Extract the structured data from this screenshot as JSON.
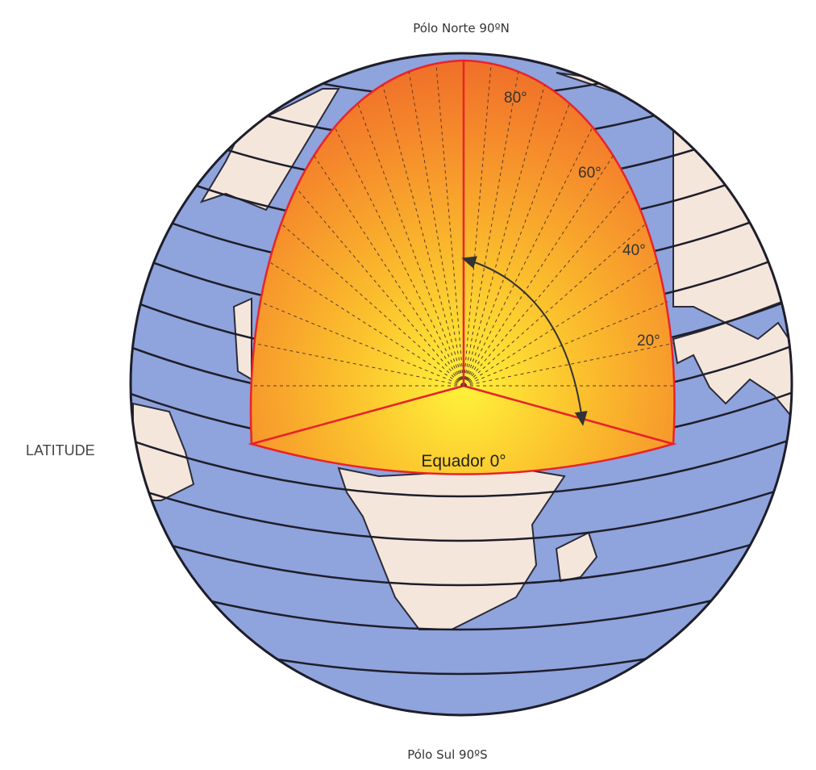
{
  "header": {
    "north": "Pólo Norte 90ºN",
    "south": "Pólo Sul 90ºS"
  },
  "side_label": "LATITUDE",
  "equator": "Equador 0°",
  "angles": [
    "80°",
    "60°",
    "40°",
    "20°"
  ]
}
